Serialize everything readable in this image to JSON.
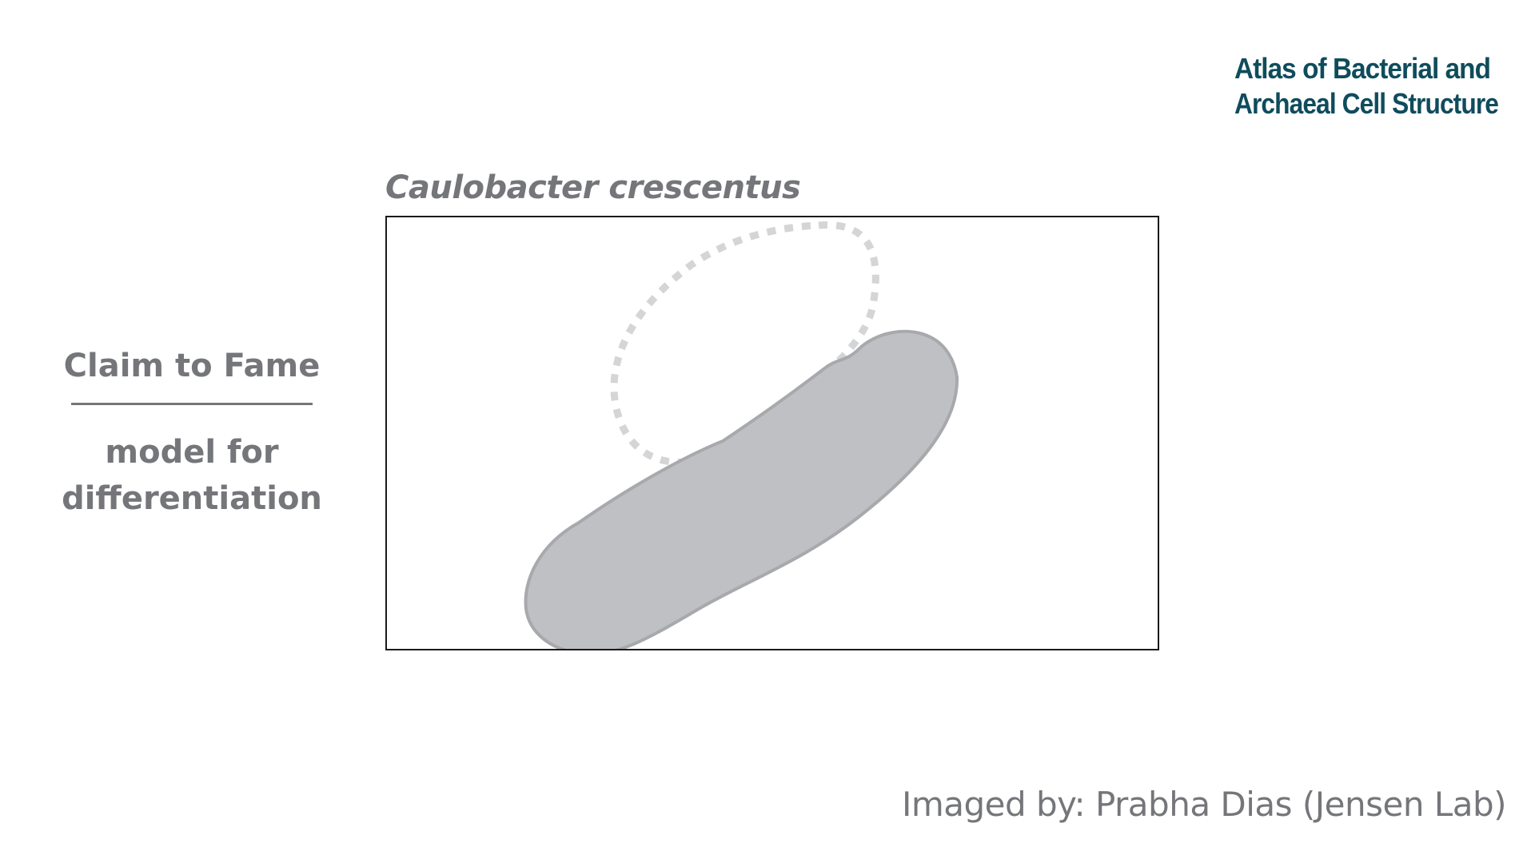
{
  "logo": {
    "line1": "Atlas of Bacterial and",
    "line2": "Archaeal Cell Structure",
    "color": "#0f4c5c"
  },
  "species": "Caulobacter crescentus",
  "claim": {
    "title": "Claim to Fame",
    "line1": "model for",
    "line2": "differentiation"
  },
  "credit": "Imaged by: Prabha Dias (Jensen Lab)",
  "colors": {
    "text_gray": "#75767a",
    "cell_fill": "#bfc0c3",
    "cell_stroke": "#a8a9ac",
    "ghost_stroke": "#d4d5d7"
  }
}
